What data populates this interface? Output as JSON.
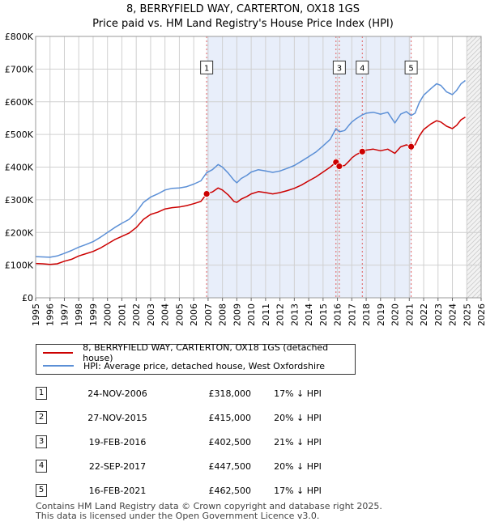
{
  "title_line1": "8, BERRYFIELD WAY, CARTERTON, OX18 1GS",
  "title_line2": "Price paid vs. HM Land Registry's House Price Index (HPI)",
  "colors": {
    "property": "#cc0000",
    "hpi": "#5b8fd6",
    "sale_band": "#e8eefa",
    "future_band": "#eeeeee",
    "grid": "#d0d0d0"
  },
  "chart_data": {
    "type": "line",
    "x_range": [
      1995,
      2026
    ],
    "ylim": [
      0,
      800000
    ],
    "y_ticks": [
      {
        "value": 0,
        "label": "£0"
      },
      {
        "value": 100000,
        "label": "£100K"
      },
      {
        "value": 200000,
        "label": "£200K"
      },
      {
        "value": 300000,
        "label": "£300K"
      },
      {
        "value": 400000,
        "label": "£400K"
      },
      {
        "value": 500000,
        "label": "£500K"
      },
      {
        "value": 600000,
        "label": "£600K"
      },
      {
        "value": 700000,
        "label": "£700K"
      },
      {
        "value": 800000,
        "label": "£800K"
      }
    ],
    "x_ticks": [
      "1995",
      "1996",
      "1997",
      "1998",
      "1999",
      "2000",
      "2001",
      "2002",
      "2003",
      "2004",
      "2005",
      "2006",
      "2007",
      "2008",
      "2009",
      "2010",
      "2011",
      "2012",
      "2013",
      "2014",
      "2015",
      "2016",
      "2017",
      "2018",
      "2019",
      "2020",
      "2021",
      "2022",
      "2023",
      "2024",
      "2025",
      "2026"
    ],
    "shaded_ranges": [
      [
        2006.9,
        2021.13
      ]
    ],
    "hatched_from": 2025.0,
    "series": [
      {
        "name": "8, BERRYFIELD WAY, CARTERTON, OX18 1GS (detached house)",
        "color": "#cc0000",
        "points": [
          [
            1995.0,
            105000
          ],
          [
            1995.5,
            104000
          ],
          [
            1996.0,
            102000
          ],
          [
            1996.5,
            104000
          ],
          [
            1997.0,
            112000
          ],
          [
            1997.5,
            118000
          ],
          [
            1998.0,
            128000
          ],
          [
            1998.5,
            135000
          ],
          [
            1999.0,
            142000
          ],
          [
            1999.5,
            152000
          ],
          [
            2000.0,
            165000
          ],
          [
            2000.5,
            178000
          ],
          [
            2001.0,
            188000
          ],
          [
            2001.5,
            198000
          ],
          [
            2002.0,
            215000
          ],
          [
            2002.5,
            240000
          ],
          [
            2003.0,
            255000
          ],
          [
            2003.5,
            262000
          ],
          [
            2004.0,
            272000
          ],
          [
            2004.5,
            276000
          ],
          [
            2005.0,
            278000
          ],
          [
            2005.5,
            282000
          ],
          [
            2006.0,
            288000
          ],
          [
            2006.5,
            295000
          ],
          [
            2006.9,
            318000
          ],
          [
            2007.3,
            324000
          ],
          [
            2007.7,
            336000
          ],
          [
            2008.0,
            330000
          ],
          [
            2008.4,
            315000
          ],
          [
            2008.8,
            295000
          ],
          [
            2009.0,
            292000
          ],
          [
            2009.3,
            302000
          ],
          [
            2009.7,
            310000
          ],
          [
            2010.0,
            318000
          ],
          [
            2010.5,
            325000
          ],
          [
            2011.0,
            322000
          ],
          [
            2011.5,
            318000
          ],
          [
            2012.0,
            322000
          ],
          [
            2012.5,
            328000
          ],
          [
            2013.0,
            335000
          ],
          [
            2013.5,
            345000
          ],
          [
            2014.0,
            358000
          ],
          [
            2014.5,
            370000
          ],
          [
            2015.0,
            385000
          ],
          [
            2015.5,
            400000
          ],
          [
            2015.9,
            415000
          ],
          [
            2016.13,
            402500
          ],
          [
            2016.5,
            405000
          ],
          [
            2016.8,
            418000
          ],
          [
            2017.0,
            428000
          ],
          [
            2017.3,
            438000
          ],
          [
            2017.73,
            447500
          ],
          [
            2018.0,
            452000
          ],
          [
            2018.5,
            455000
          ],
          [
            2019.0,
            450000
          ],
          [
            2019.5,
            455000
          ],
          [
            2020.0,
            442000
          ],
          [
            2020.4,
            462000
          ],
          [
            2020.8,
            468000
          ],
          [
            2021.13,
            462500
          ],
          [
            2021.4,
            468000
          ],
          [
            2021.7,
            495000
          ],
          [
            2022.0,
            515000
          ],
          [
            2022.5,
            532000
          ],
          [
            2022.9,
            542000
          ],
          [
            2023.2,
            538000
          ],
          [
            2023.6,
            525000
          ],
          [
            2024.0,
            518000
          ],
          [
            2024.3,
            528000
          ],
          [
            2024.6,
            545000
          ],
          [
            2024.9,
            553000
          ]
        ]
      },
      {
        "name": "HPI: Average price, detached house, West Oxfordshire",
        "color": "#5b8fd6",
        "points": [
          [
            1995.0,
            126000
          ],
          [
            1995.5,
            125000
          ],
          [
            1996.0,
            124000
          ],
          [
            1996.5,
            128000
          ],
          [
            1997.0,
            136000
          ],
          [
            1997.5,
            145000
          ],
          [
            1998.0,
            155000
          ],
          [
            1998.5,
            163000
          ],
          [
            1999.0,
            172000
          ],
          [
            1999.5,
            185000
          ],
          [
            2000.0,
            200000
          ],
          [
            2000.5,
            215000
          ],
          [
            2001.0,
            228000
          ],
          [
            2001.5,
            240000
          ],
          [
            2002.0,
            262000
          ],
          [
            2002.5,
            292000
          ],
          [
            2003.0,
            308000
          ],
          [
            2003.5,
            318000
          ],
          [
            2004.0,
            330000
          ],
          [
            2004.5,
            335000
          ],
          [
            2005.0,
            336000
          ],
          [
            2005.5,
            340000
          ],
          [
            2006.0,
            348000
          ],
          [
            2006.5,
            358000
          ],
          [
            2006.9,
            383000
          ],
          [
            2007.3,
            392000
          ],
          [
            2007.7,
            408000
          ],
          [
            2008.0,
            400000
          ],
          [
            2008.4,
            382000
          ],
          [
            2008.8,
            360000
          ],
          [
            2009.0,
            352000
          ],
          [
            2009.3,
            365000
          ],
          [
            2009.7,
            375000
          ],
          [
            2010.0,
            385000
          ],
          [
            2010.5,
            392000
          ],
          [
            2011.0,
            388000
          ],
          [
            2011.5,
            384000
          ],
          [
            2012.0,
            388000
          ],
          [
            2012.5,
            396000
          ],
          [
            2013.0,
            405000
          ],
          [
            2013.5,
            418000
          ],
          [
            2014.0,
            432000
          ],
          [
            2014.5,
            446000
          ],
          [
            2015.0,
            465000
          ],
          [
            2015.5,
            485000
          ],
          [
            2015.9,
            518000
          ],
          [
            2016.13,
            508000
          ],
          [
            2016.5,
            512000
          ],
          [
            2016.8,
            528000
          ],
          [
            2017.0,
            538000
          ],
          [
            2017.3,
            548000
          ],
          [
            2017.73,
            560000
          ],
          [
            2018.0,
            565000
          ],
          [
            2018.5,
            568000
          ],
          [
            2019.0,
            562000
          ],
          [
            2019.5,
            568000
          ],
          [
            2020.0,
            535000
          ],
          [
            2020.4,
            562000
          ],
          [
            2020.8,
            570000
          ],
          [
            2021.13,
            558000
          ],
          [
            2021.4,
            565000
          ],
          [
            2021.7,
            598000
          ],
          [
            2022.0,
            620000
          ],
          [
            2022.5,
            640000
          ],
          [
            2022.9,
            655000
          ],
          [
            2023.2,
            650000
          ],
          [
            2023.6,
            630000
          ],
          [
            2024.0,
            622000
          ],
          [
            2024.3,
            635000
          ],
          [
            2024.6,
            655000
          ],
          [
            2024.9,
            665000
          ]
        ]
      }
    ],
    "sales": [
      {
        "n": "1",
        "x": 2006.9,
        "price": 318000
      },
      {
        "n": "2",
        "x": 2015.9,
        "price": 415000
      },
      {
        "n": "3",
        "x": 2016.13,
        "price": 402500
      },
      {
        "n": "4",
        "x": 2017.73,
        "price": 447500
      },
      {
        "n": "5",
        "x": 2021.13,
        "price": 462500
      }
    ],
    "markers": [
      {
        "n": "1",
        "x": 2006.9
      },
      {
        "n": "3",
        "x": 2016.13
      },
      {
        "n": "4",
        "x": 2017.73
      },
      {
        "n": "5",
        "x": 2021.13
      }
    ],
    "marker_level": 705000
  },
  "legend": {
    "property": "8, BERRYFIELD WAY, CARTERTON, OX18 1GS (detached house)",
    "hpi": "HPI: Average price, detached house, West Oxfordshire"
  },
  "sales_table": [
    {
      "n": "1",
      "date": "24-NOV-2006",
      "price": "£318,000",
      "hpi": "17% ↓ HPI"
    },
    {
      "n": "2",
      "date": "27-NOV-2015",
      "price": "£415,000",
      "hpi": "20% ↓ HPI"
    },
    {
      "n": "3",
      "date": "19-FEB-2016",
      "price": "£402,500",
      "hpi": "21% ↓ HPI"
    },
    {
      "n": "4",
      "date": "22-SEP-2017",
      "price": "£447,500",
      "hpi": "20% ↓ HPI"
    },
    {
      "n": "5",
      "date": "16-FEB-2021",
      "price": "£462,500",
      "hpi": "17% ↓ HPI"
    }
  ],
  "footer_line1": "Contains HM Land Registry data © Crown copyright and database right 2025.",
  "footer_line2": "This data is licensed under the Open Government Licence v3.0."
}
